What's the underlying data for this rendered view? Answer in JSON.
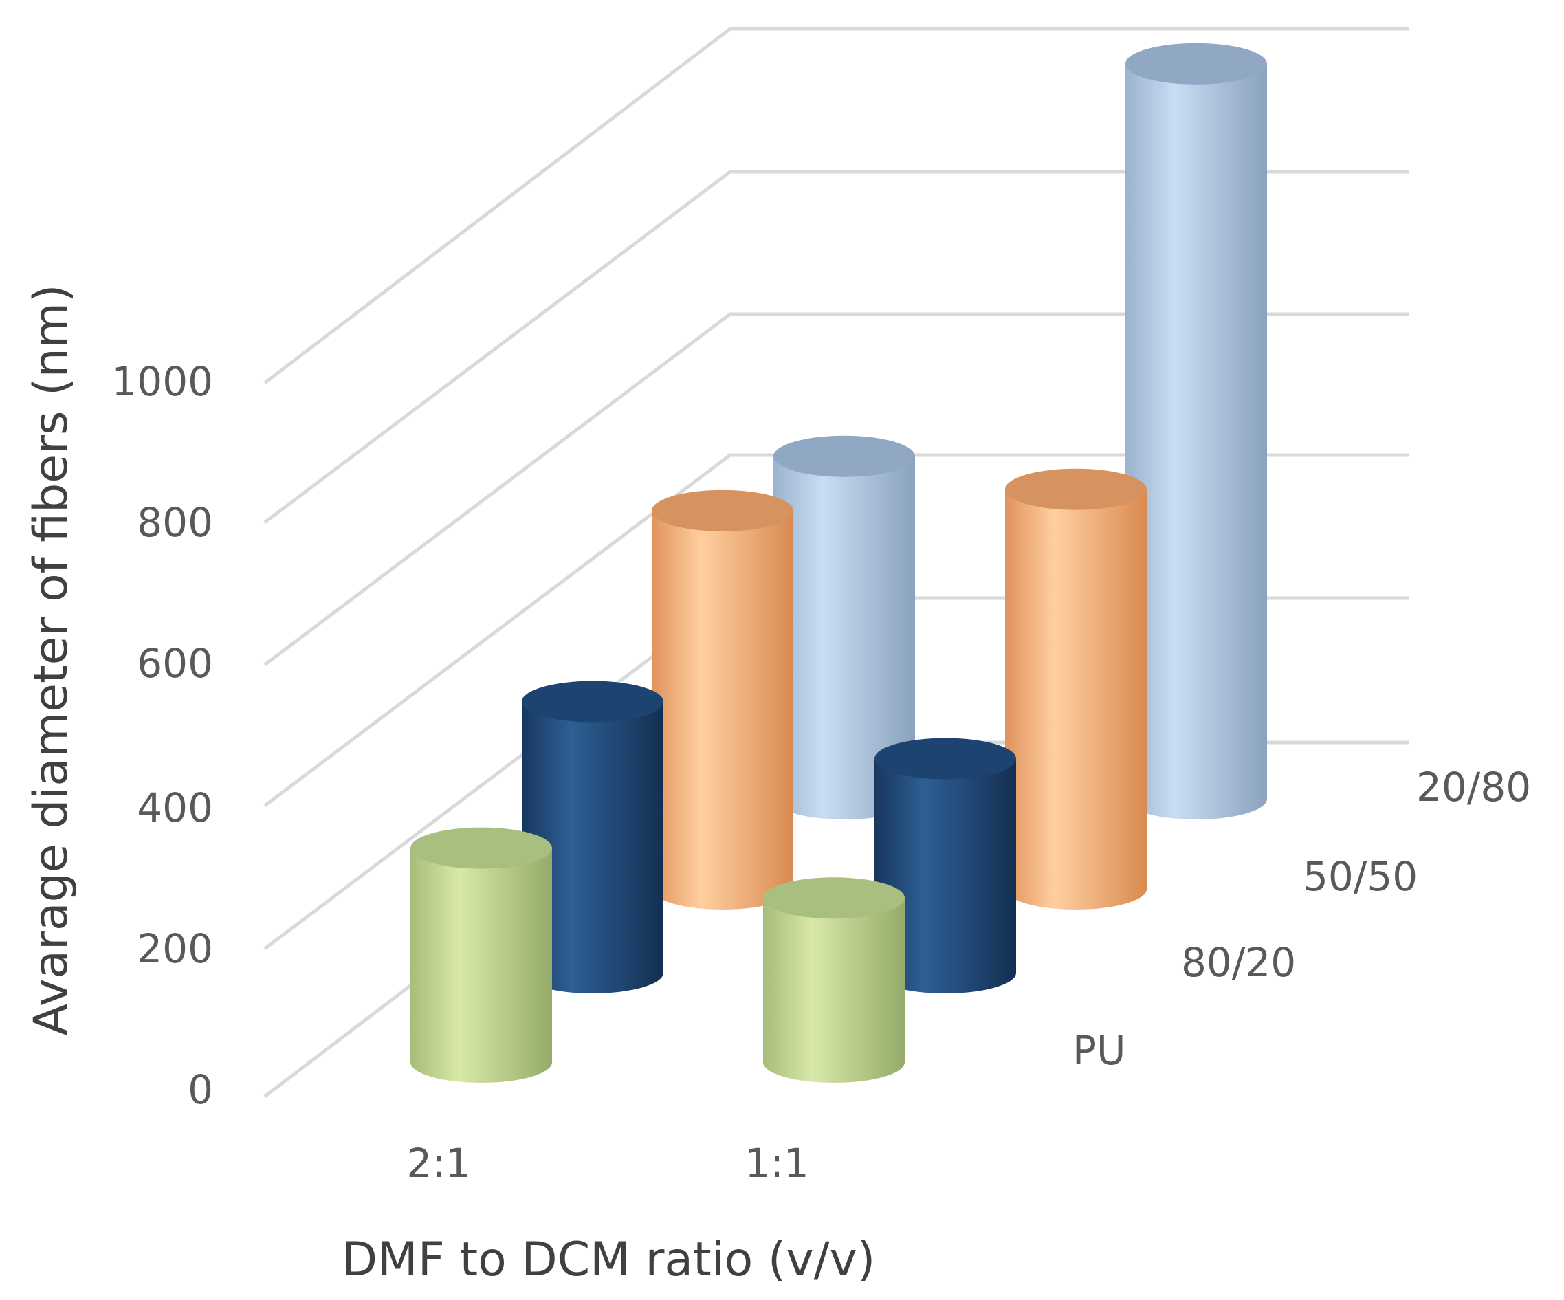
{
  "chart_data": {
    "type": "bar",
    "subtype": "3d-cylinder",
    "title": "",
    "xlabel": "DMF to DCM ratio (v/v)",
    "ylabel": "Avarage diameter of fibers (nm)",
    "categories": [
      "2:1",
      "1:1"
    ],
    "ylim": [
      0,
      1000
    ],
    "yticks": [
      "0",
      "200",
      "400",
      "600",
      "800",
      "1000"
    ],
    "grid": true,
    "series": [
      {
        "name": "PU",
        "values": [
          300,
          230
        ],
        "color": "#c4d79b"
      },
      {
        "name": "80/20",
        "values": [
          380,
          300
        ],
        "color": "#1f4e79"
      },
      {
        "name": "50/50",
        "values": [
          530,
          560
        ],
        "color": "#f4b183"
      },
      {
        "name": "20/80",
        "values": [
          480,
          1030
        ],
        "color": "#9dc3e6"
      }
    ]
  }
}
